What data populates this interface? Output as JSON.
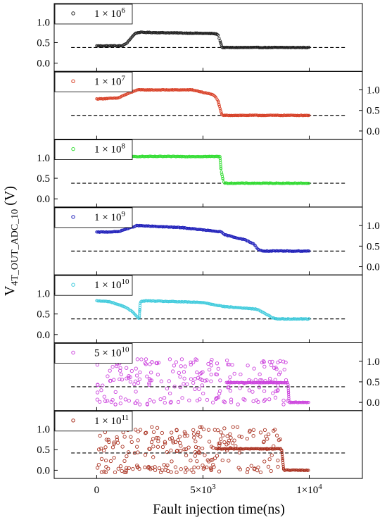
{
  "chart_data": {
    "type": "scatter",
    "layout": "seven vertically stacked panels sharing one x axis",
    "xlabel": "Fault injection time(ns)",
    "ylabel": {
      "main": "V",
      "subscript": "4T_OUT_ADC_10",
      "unit": "(V)"
    },
    "xlim": [
      -2000,
      12500
    ],
    "x_ticks": [
      {
        "value": 0,
        "label": "0",
        "exp": ""
      },
      {
        "value": 5000,
        "label": "5×10",
        "exp": "3"
      },
      {
        "value": 10000,
        "label": "1×10",
        "exp": "4"
      }
    ],
    "ylim": [
      -0.2,
      1.45
    ],
    "y_ticks": [
      0.0,
      0.5,
      1.0
    ],
    "y_tick_labels": [
      "0.0",
      "0.5",
      "1.0"
    ],
    "reference_line": {
      "y": 0.38,
      "style": "dashed",
      "color": "#000000"
    },
    "legend_placement": "top-left of each panel",
    "panels": [
      {
        "legend": {
          "mantissa": "1 × 10",
          "exp": "6"
        },
        "color": "#222222",
        "tick_side": "left",
        "ref_y": 0.38,
        "segments": [
          [
            0,
            0.42
          ],
          [
            1200,
            0.42
          ],
          [
            1400,
            0.48
          ],
          [
            1800,
            0.72
          ],
          [
            2000,
            0.75
          ],
          [
            5500,
            0.72
          ],
          [
            5700,
            0.7
          ],
          [
            5800,
            0.55
          ],
          [
            5900,
            0.38
          ],
          [
            10000,
            0.38
          ]
        ],
        "noise": []
      },
      {
        "legend": {
          "mantissa": "1 × 10",
          "exp": "7"
        },
        "color": "#d9432a",
        "tick_side": "right",
        "ref_y": 0.38,
        "segments": [
          [
            0,
            0.78
          ],
          [
            1000,
            0.8
          ],
          [
            1200,
            0.85
          ],
          [
            1900,
            1.0
          ],
          [
            4500,
            1.0
          ],
          [
            5500,
            0.88
          ],
          [
            5700,
            0.75
          ],
          [
            5800,
            0.55
          ],
          [
            5900,
            0.38
          ],
          [
            10000,
            0.38
          ]
        ],
        "noise": []
      },
      {
        "legend": {
          "mantissa": "1 × 10",
          "exp": "8"
        },
        "color": "#33dd33",
        "tick_side": "left",
        "ref_y": 0.38,
        "segments": [
          [
            1300,
            1.03
          ],
          [
            5800,
            1.03
          ],
          [
            5850,
            0.7
          ],
          [
            5950,
            0.45
          ],
          [
            6000,
            0.38
          ],
          [
            10000,
            0.38
          ]
        ],
        "noise": []
      },
      {
        "legend": {
          "mantissa": "1 × 10",
          "exp": "9"
        },
        "color": "#2222bb",
        "tick_side": "right",
        "ref_y": 0.38,
        "segments": [
          [
            0,
            0.84
          ],
          [
            1000,
            0.85
          ],
          [
            1900,
            1.0
          ],
          [
            4000,
            0.95
          ],
          [
            5800,
            0.85
          ],
          [
            5900,
            0.83
          ],
          [
            6000,
            0.78
          ],
          [
            7000,
            0.65
          ],
          [
            7400,
            0.55
          ],
          [
            7600,
            0.42
          ],
          [
            7800,
            0.38
          ],
          [
            10000,
            0.38
          ]
        ],
        "noise": []
      },
      {
        "legend": {
          "mantissa": "1 × 10",
          "exp": "10"
        },
        "color": "#44ccdd",
        "tick_side": "left",
        "ref_y": 0.38,
        "segments": [
          [
            0,
            0.82
          ],
          [
            600,
            0.8
          ],
          [
            1300,
            0.68
          ],
          [
            1700,
            0.55
          ],
          [
            2000,
            0.38
          ],
          [
            2050,
            0.8
          ],
          [
            2300,
            0.82
          ],
          [
            5000,
            0.78
          ],
          [
            6000,
            0.68
          ],
          [
            7500,
            0.62
          ],
          [
            7800,
            0.55
          ],
          [
            8300,
            0.4
          ],
          [
            8500,
            0.38
          ],
          [
            10000,
            0.38
          ]
        ],
        "noise": []
      },
      {
        "legend": {
          "mantissa": "5 × 10",
          "exp": "10"
        },
        "color": "#cc44dd",
        "tick_side": "right",
        "ref_y": 0.38,
        "segments": [
          [
            6100,
            0.48
          ],
          [
            9000,
            0.48
          ],
          [
            9050,
            0.0
          ],
          [
            10000,
            0.0
          ]
        ],
        "noise": {
          "x_range": [
            0,
            9000
          ],
          "count": 220,
          "levels": [
            0.0,
            0.05,
            0.3,
            0.5,
            0.6,
            0.75,
            0.9,
            1.0
          ]
        }
      },
      {
        "legend": {
          "mantissa": "1 × 10",
          "exp": "11"
        },
        "color": "#aa3322",
        "tick_side": "left",
        "ref_y": 0.42,
        "segments": [
          [
            5600,
            0.52
          ],
          [
            8700,
            0.52
          ],
          [
            8800,
            0.0
          ],
          [
            10000,
            0.0
          ]
        ],
        "noise": {
          "x_range": [
            0,
            8700
          ],
          "count": 240,
          "levels": [
            0.0,
            0.05,
            0.3,
            0.5,
            0.6,
            0.75,
            0.9,
            1.0
          ]
        }
      }
    ]
  }
}
